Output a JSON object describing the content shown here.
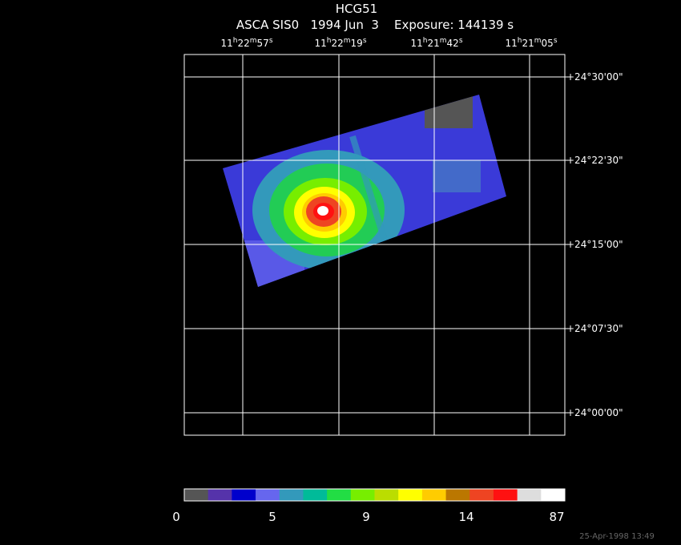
{
  "header": {
    "title": "HCG51",
    "subtitle": "ASCA SIS0   1994 Jun  3    Exposure: 144139 s"
  },
  "ra_ticks": [
    [
      "11",
      "h",
      "22",
      "m",
      "57",
      "s"
    ],
    [
      "11",
      "h",
      "22",
      "m",
      "19",
      "s"
    ],
    [
      "11",
      "h",
      "21",
      "m",
      "42",
      "s"
    ],
    [
      "11",
      "h",
      "21",
      "m",
      "05",
      "s"
    ]
  ],
  "dec_ticks": [
    "+24°30'00\"",
    "+24°22'30\"",
    "+24°15'00\"",
    "+24°07'30\"",
    "+24°00'00\""
  ],
  "colorbar": {
    "colors": [
      "#555555",
      "#5533aa",
      "#0000cc",
      "#6666ee",
      "#3399bb",
      "#00bb99",
      "#22dd44",
      "#77ee00",
      "#bbdd00",
      "#ffff00",
      "#ffcc00",
      "#bb7700",
      "#ee4422",
      "#ff1111",
      "#dddddd",
      "#ffffff"
    ],
    "labels": [
      "0",
      "5",
      "9",
      "14",
      "87"
    ]
  },
  "timestamp": "25-Apr-1998 13:49"
}
